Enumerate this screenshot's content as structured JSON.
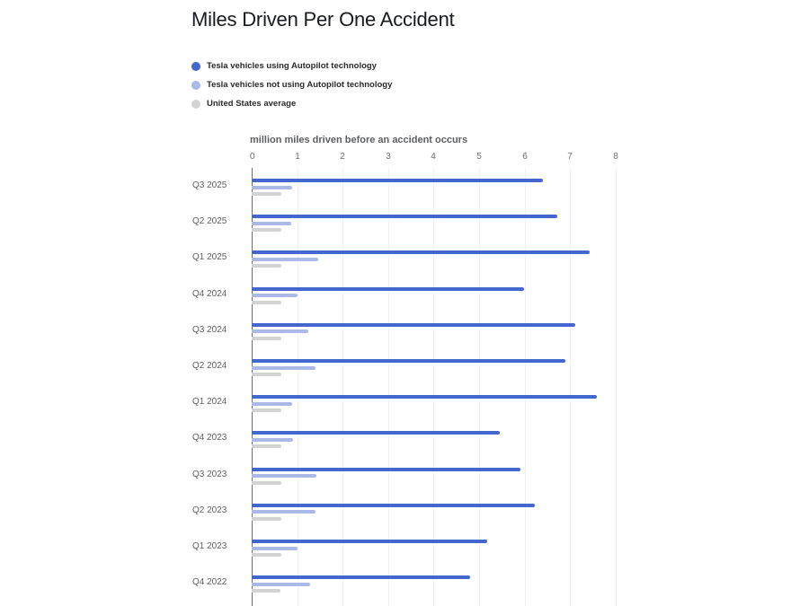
{
  "title": "Miles Driven Per One Accident",
  "legend": [
    {
      "label": "Tesla vehicles using Autopilot technology",
      "color": "#4466cf"
    },
    {
      "label": "Tesla vehicles not using Autopilot technology",
      "color": "#abb9e8"
    },
    {
      "label": "United States average",
      "color": "#d3d3d4"
    }
  ],
  "axis": {
    "title": "million miles driven before an accident occurs",
    "ticks": [
      "0",
      "1",
      "2",
      "3",
      "4",
      "5",
      "6",
      "7",
      "8"
    ]
  },
  "chart_data": {
    "type": "bar",
    "orientation": "horizontal",
    "title": "Miles Driven Per One Accident",
    "xlabel": "million miles driven before an accident occurs",
    "ylabel": "",
    "xlim": [
      0,
      8
    ],
    "grid": true,
    "legend_position": "top-left",
    "categories": [
      "Q3 2025",
      "Q2 2025",
      "Q1 2025",
      "Q4 2024",
      "Q3 2024",
      "Q2 2024",
      "Q1 2024",
      "Q4 2023",
      "Q3 2023",
      "Q2 2023",
      "Q1 2023",
      "Q4 2022"
    ],
    "series": [
      {
        "name": "Tesla vehicles using Autopilot technology",
        "color": "#4466cf",
        "values": [
          6.41,
          6.71,
          7.44,
          5.98,
          7.11,
          6.89,
          7.58,
          5.45,
          5.91,
          6.22,
          5.17,
          4.8
        ]
      },
      {
        "name": "Tesla vehicles not using Autopilot technology",
        "color": "#abb9e8",
        "values": [
          0.89,
          0.86,
          1.47,
          1.01,
          1.25,
          1.4,
          0.89,
          0.91,
          1.43,
          1.41,
          1.01,
          1.29
        ]
      },
      {
        "name": "United States average",
        "color": "#d3d3d4",
        "values": [
          0.66,
          0.66,
          0.66,
          0.66,
          0.66,
          0.66,
          0.66,
          0.66,
          0.66,
          0.66,
          0.66,
          0.63
        ]
      }
    ]
  }
}
